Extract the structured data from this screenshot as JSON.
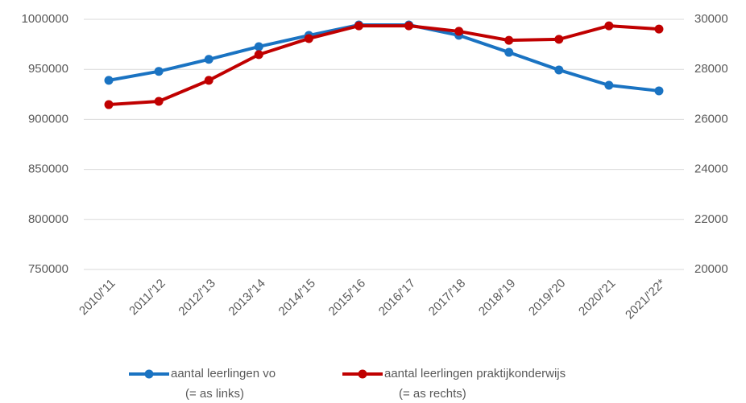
{
  "chart_data": {
    "type": "line",
    "categories": [
      "2010/'11",
      "2011/'12",
      "2012/'13",
      "2013/'14",
      "2014/'15",
      "2015/'16",
      "2016/'17",
      "2017/'18",
      "2018/'19",
      "2019/'20",
      "2020/'21",
      "2021/'22*"
    ],
    "series": [
      {
        "name": "aantal leerlingen vo",
        "axis_note": "(= as links)",
        "color": "#1a73c2",
        "values": [
          939000,
          948000,
          960000,
          972700,
          983900,
          994400,
          994400,
          984000,
          967000,
          949400,
          934100,
          928500
        ]
      },
      {
        "name": "aantal leerlingen praktijkonderwijs",
        "axis_note": "(= as rechts)",
        "color": "#c00000",
        "axis": "y2",
        "values": [
          26590,
          26720,
          27560,
          28590,
          29230,
          29740,
          29740,
          29520,
          29160,
          29200,
          29740,
          29610
        ]
      }
    ],
    "ylim": [
      750000,
      1000000
    ],
    "yticks": [
      750000,
      800000,
      850000,
      900000,
      950000,
      1000000
    ],
    "y2lim": [
      20000,
      30000
    ],
    "y2ticks": [
      20000,
      22000,
      24000,
      26000,
      28000,
      30000
    ],
    "grid": true
  }
}
